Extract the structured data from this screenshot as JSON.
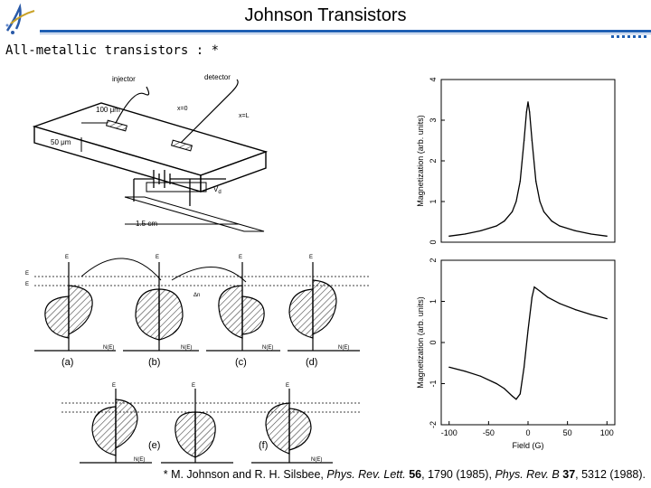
{
  "slide": {
    "title": "Johnson Transistors",
    "subtitle": "All-metallic transistors : *",
    "reference": {
      "prefix": "* M. Johnson and R. H. Silsbee,",
      "journal1": "Phys. Rev. Lett.",
      "vol1": "56",
      "pages1": ", 1790 (1985),",
      "journal2": "Phys. Rev. B",
      "vol2": "37",
      "pages2": ", 5312 (1988)."
    },
    "colors": {
      "accent": "#1f5fb3",
      "accent_light": "#9fb8e0"
    }
  },
  "device": {
    "injector": "injector",
    "detector": "detector",
    "dim_width": "100 μm",
    "dim_thick": "50 μm",
    "x0": "x=0",
    "xL": "x=L",
    "length": "1.5 cm",
    "vd": "V",
    "vd_sub": "d"
  },
  "bands": {
    "axis_E": "E",
    "axis_N": "N(E)",
    "efp_ev": "E",
    "efp": "E",
    "delta_n": "Δn",
    "panel_labels": [
      "(a)",
      "(b)",
      "(c)",
      "(d)",
      "(e)",
      "(f)"
    ]
  },
  "chart_data": [
    {
      "type": "line",
      "ylabel": "Magnetization (arb. units)",
      "xlim": [
        -110,
        110
      ],
      "ylim": [
        0,
        4
      ],
      "yticks": [
        "0",
        "1",
        "2",
        "3",
        "4"
      ],
      "x": [
        -100,
        -80,
        -60,
        -40,
        -30,
        -20,
        -15,
        -10,
        -5,
        -2,
        0,
        2,
        5,
        10,
        15,
        20,
        30,
        40,
        60,
        80,
        100
      ],
      "y": [
        0.15,
        0.2,
        0.28,
        0.4,
        0.52,
        0.75,
        1.0,
        1.5,
        2.5,
        3.2,
        3.45,
        3.2,
        2.5,
        1.5,
        1.0,
        0.75,
        0.52,
        0.4,
        0.28,
        0.2,
        0.15
      ]
    },
    {
      "type": "line",
      "ylabel": "Magnetization (arb. units)",
      "xlabel": "Field (G)",
      "xlim": [
        -110,
        110
      ],
      "ylim": [
        -2,
        2
      ],
      "yticks": [
        "-2",
        "-1",
        "0",
        "1",
        "2"
      ],
      "xticks": [
        "-100",
        "-50",
        "0",
        "50",
        "100"
      ],
      "x": [
        -100,
        -80,
        -60,
        -40,
        -30,
        -20,
        -15,
        -10,
        -5,
        0,
        5,
        8,
        15,
        25,
        40,
        60,
        80,
        100
      ],
      "y": [
        -0.6,
        -0.7,
        -0.82,
        -1.0,
        -1.12,
        -1.3,
        -1.38,
        -1.25,
        -0.6,
        0.3,
        1.1,
        1.35,
        1.25,
        1.1,
        0.95,
        0.8,
        0.68,
        0.58
      ]
    }
  ]
}
